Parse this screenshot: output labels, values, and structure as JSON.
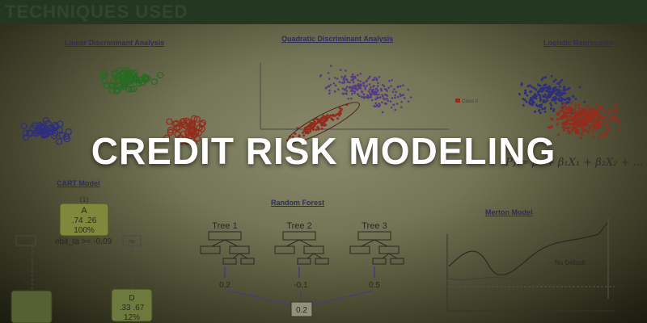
{
  "header": {
    "title": "TECHNIQUES USED"
  },
  "main_title": "CREDIT RISK MODELING",
  "panels": {
    "lda": "Linear Discriminant Analysis",
    "qda": "Quadratic Discriminant Analysis",
    "logreg": "Logistic Regression",
    "cart": "CART Model",
    "rf": "Random Forest",
    "merton": "Merton Model"
  },
  "cart": {
    "node_a": [
      "(1)",
      "A",
      ".74 .26",
      "100%"
    ],
    "split_rule": "ebit_ta >= -0.09",
    "yes": "yes",
    "no": "no",
    "node_d": [
      "D",
      ".33 .67",
      "12%"
    ]
  },
  "rf": {
    "trees": [
      "Tree 1",
      "Tree 2",
      "Tree 3"
    ],
    "outputs": [
      "0.2",
      "-0.1",
      "0.5"
    ],
    "result": "0.2"
  },
  "merton": {
    "no_default": "No Default"
  },
  "qda": {
    "legend": "Class 0"
  },
  "logreg": {
    "formula": "P) = β₀ + β₁X₁ + β₂X₂ + ..."
  },
  "colors": {
    "blue": "#3c3cbe",
    "green": "#2f9a2f",
    "red": "#d93a2a",
    "purple": "#7a4fc9",
    "white": "#ffffff"
  }
}
